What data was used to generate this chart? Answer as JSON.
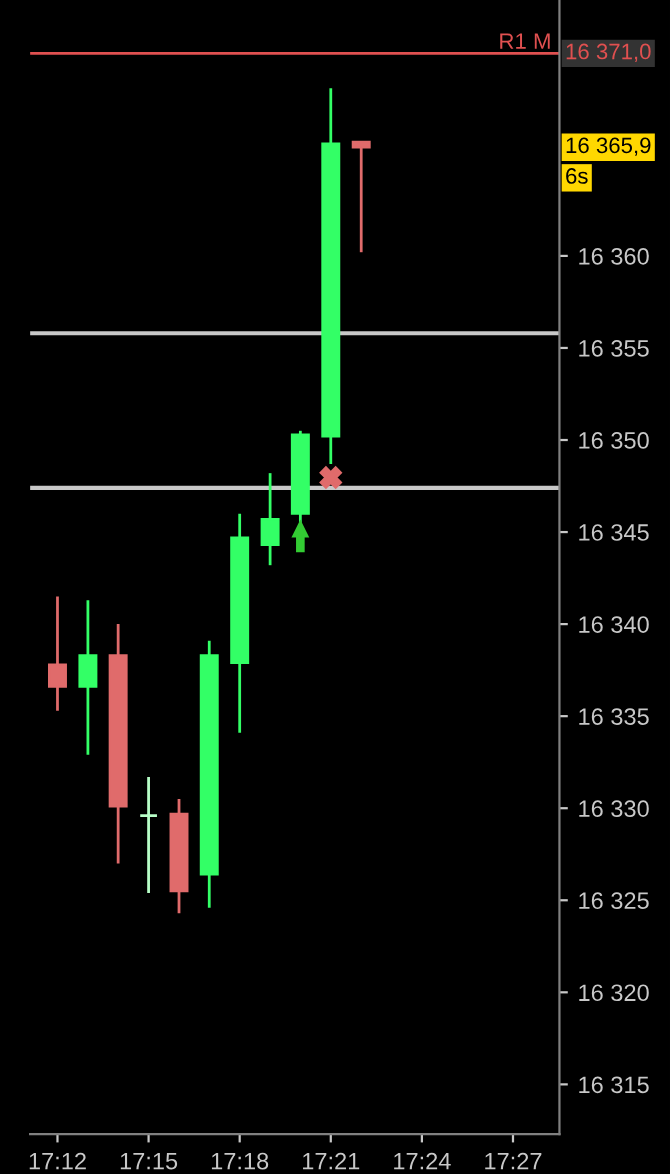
{
  "chart_data": {
    "type": "candlestick",
    "x": [
      17.2,
      17.2167,
      17.2333,
      17.25,
      17.2667,
      17.2833,
      17.3,
      17.3167,
      17.3333,
      17.35,
      17.3667
    ],
    "ohlc": [
      [
        16337.8,
        16341.5,
        16335.3,
        16336.6
      ],
      [
        16336.6,
        16341.3,
        16332.9,
        16338.3
      ],
      [
        16338.3,
        16340.0,
        16327.0,
        16330.1
      ],
      [
        16329.6,
        16331.7,
        16325.4,
        16329.6
      ],
      [
        16329.7,
        16330.5,
        16324.3,
        16325.5
      ],
      [
        16326.4,
        16339.1,
        16324.6,
        16338.3
      ],
      [
        16337.9,
        16346.0,
        16334.1,
        16344.7
      ],
      [
        16344.3,
        16348.2,
        16343.2,
        16345.7
      ],
      [
        16346.0,
        16350.5,
        16345.5,
        16350.3
      ],
      [
        16350.2,
        16369.1,
        16348.7,
        16366.1
      ],
      [
        16366.2,
        16366.2,
        16360.2,
        16365.9
      ]
    ],
    "colors": [
      "#e06b6b",
      "#33ff66",
      "#e06b6b",
      "#b8ffc8",
      "#e06b6b",
      "#33ff66",
      "#33ff66",
      "#33ff66",
      "#33ff66",
      "#33ff66",
      "#e06b6b"
    ],
    "xlim": [
      17.185,
      17.4755
    ],
    "ylim": [
      16312.3,
      16373.9
    ],
    "xticks": [
      {
        "value": 17.2,
        "label": "17:12"
      },
      {
        "value": 17.25,
        "label": "17:15"
      },
      {
        "value": 17.3,
        "label": "17:18"
      },
      {
        "value": 17.35,
        "label": "17:21"
      },
      {
        "value": 17.4,
        "label": "17:24"
      },
      {
        "value": 17.45,
        "label": "17:27"
      }
    ],
    "yticks": [
      {
        "value": 16315,
        "label": "16 315"
      },
      {
        "value": 16320,
        "label": "16 320"
      },
      {
        "value": 16325,
        "label": "16 325"
      },
      {
        "value": 16330,
        "label": "16 330"
      },
      {
        "value": 16335,
        "label": "16 335"
      },
      {
        "value": 16340,
        "label": "16 340"
      },
      {
        "value": 16345,
        "label": "16 345"
      },
      {
        "value": 16350,
        "label": "16 350"
      },
      {
        "value": 16355,
        "label": "16 355"
      },
      {
        "value": 16360,
        "label": "16 360"
      }
    ],
    "ref_lines": [
      {
        "axis": "y",
        "value": 16371.0,
        "label": "R1 M",
        "color": "#e05050"
      },
      {
        "axis": "y",
        "value": 16355.8,
        "color": "#c8c8c8"
      },
      {
        "axis": "y",
        "value": 16347.4,
        "color": "#c8c8c8"
      }
    ],
    "annotations": [
      "16 371,0",
      "16 365,9",
      "6s"
    ],
    "grid": false
  }
}
